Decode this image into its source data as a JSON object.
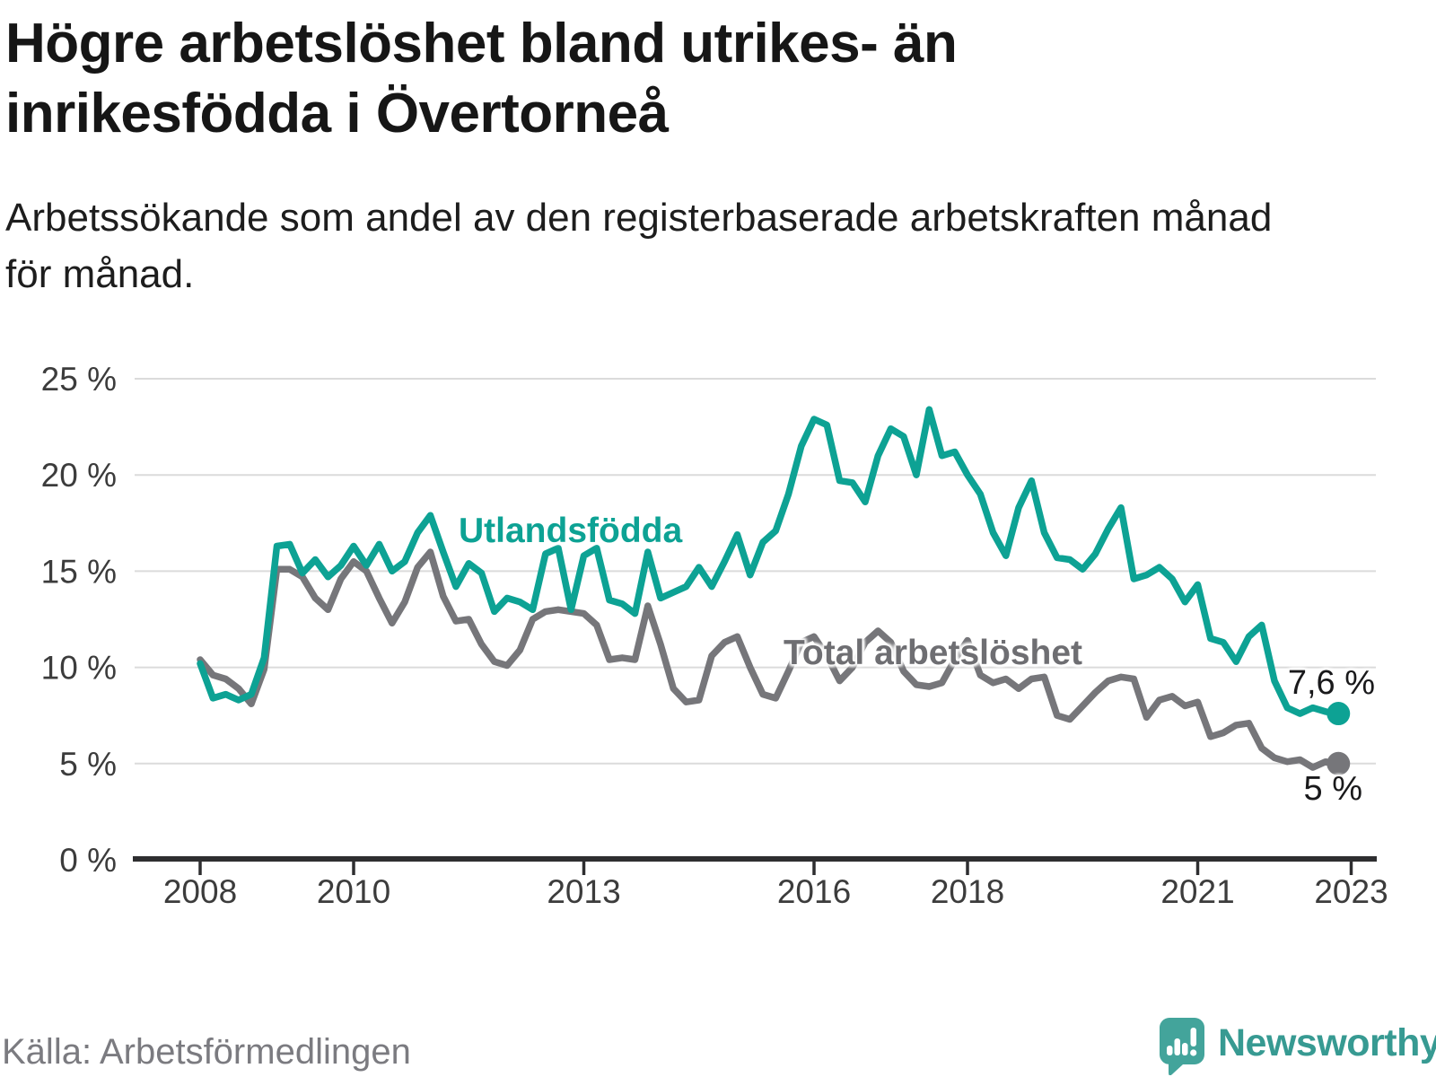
{
  "header": {
    "title_line1": "Högre arbetslöshet bland utrikes- än",
    "title_line2": "inrikesfödda i Övertorneå",
    "subtitle_line1": "Arbetssökande som andel av den registerbaserade arbetskraften månad",
    "subtitle_line2": "för månad."
  },
  "footer": {
    "source": "Källa: Arbetsförmedlingen",
    "brand": "Newsworthy",
    "brand_color": "#379A92",
    "brand_icon_color": "#43A49B",
    "brand_icon": "bar-chart-pin-icon"
  },
  "chart_data": {
    "type": "line",
    "title": "Högre arbetslöshet bland utrikes- än inrikesfödda i Övertorneå",
    "xlabel": "",
    "ylabel": "",
    "unit": "%",
    "grid": true,
    "legend_position": "inline-labels",
    "ylim": [
      0,
      26
    ],
    "xlim": [
      2007.2,
      2023.3
    ],
    "x_start": 2008.0,
    "x_step": 0.166667,
    "x_ticks": [
      {
        "value": 2008,
        "label": "2008"
      },
      {
        "value": 2010,
        "label": "2010"
      },
      {
        "value": 2013,
        "label": "2013"
      },
      {
        "value": 2016,
        "label": "2016"
      },
      {
        "value": 2018,
        "label": "2018"
      },
      {
        "value": 2021,
        "label": "2021"
      },
      {
        "value": 2023,
        "label": "2023"
      }
    ],
    "y_ticks": [
      {
        "value": 0,
        "label": "0 %"
      },
      {
        "value": 5,
        "label": "5 %"
      },
      {
        "value": 10,
        "label": "10 %"
      },
      {
        "value": 15,
        "label": "15 %"
      },
      {
        "value": 20,
        "label": "20 %"
      },
      {
        "value": 25,
        "label": "25 %"
      }
    ],
    "series": [
      {
        "name": "Utlandsfödda",
        "color": "#0DA294",
        "end_label": "7,6 %",
        "end_value": 7.6,
        "values": [
          10.2,
          8.4,
          8.6,
          8.3,
          8.6,
          10.5,
          16.3,
          16.4,
          14.9,
          15.6,
          14.7,
          15.3,
          16.3,
          15.3,
          16.4,
          15.0,
          15.5,
          17.0,
          17.9,
          16.0,
          14.2,
          15.4,
          14.9,
          12.9,
          13.6,
          13.4,
          13.0,
          15.9,
          16.2,
          13.0,
          15.8,
          16.2,
          13.5,
          13.3,
          12.8,
          16.0,
          13.6,
          13.9,
          14.2,
          15.2,
          14.2,
          15.5,
          16.9,
          14.8,
          16.5,
          17.1,
          19.0,
          21.5,
          22.9,
          22.6,
          19.7,
          19.6,
          18.6,
          21.0,
          22.4,
          22.0,
          20.0,
          23.4,
          21.0,
          21.2,
          20.0,
          19.0,
          17.0,
          15.8,
          18.3,
          19.7,
          17.0,
          15.7,
          15.6,
          15.1,
          15.9,
          17.2,
          18.3,
          14.6,
          14.8,
          15.2,
          14.6,
          13.4,
          14.3,
          11.5,
          11.3,
          10.3,
          11.6,
          12.2,
          9.3,
          7.9,
          7.6,
          7.9,
          7.7,
          7.6
        ]
      },
      {
        "name": "Total arbetslöshet",
        "color": "#76767A",
        "end_label": "5 %",
        "end_value": 5.0,
        "values": [
          10.4,
          9.6,
          9.4,
          8.9,
          8.1,
          9.9,
          15.1,
          15.1,
          14.7,
          13.6,
          13.0,
          14.6,
          15.5,
          15.0,
          13.6,
          12.3,
          13.4,
          15.2,
          16.0,
          13.7,
          12.4,
          12.5,
          11.2,
          10.3,
          10.1,
          10.9,
          12.5,
          12.9,
          13.0,
          12.9,
          12.8,
          12.2,
          10.4,
          10.5,
          10.4,
          13.2,
          11.2,
          8.9,
          8.2,
          8.3,
          10.6,
          11.3,
          11.6,
          10.0,
          8.6,
          8.4,
          9.8,
          11.3,
          11.6,
          10.6,
          9.3,
          10.0,
          11.3,
          11.9,
          11.3,
          9.8,
          9.1,
          9.0,
          9.2,
          10.4,
          11.4,
          9.6,
          9.2,
          9.4,
          8.9,
          9.4,
          9.5,
          7.5,
          7.3,
          8.0,
          8.7,
          9.3,
          9.5,
          9.4,
          7.4,
          8.3,
          8.5,
          8.0,
          8.2,
          6.4,
          6.6,
          7.0,
          7.1,
          5.8,
          5.3,
          5.1,
          5.2,
          4.8,
          5.1,
          5.0
        ]
      }
    ]
  }
}
